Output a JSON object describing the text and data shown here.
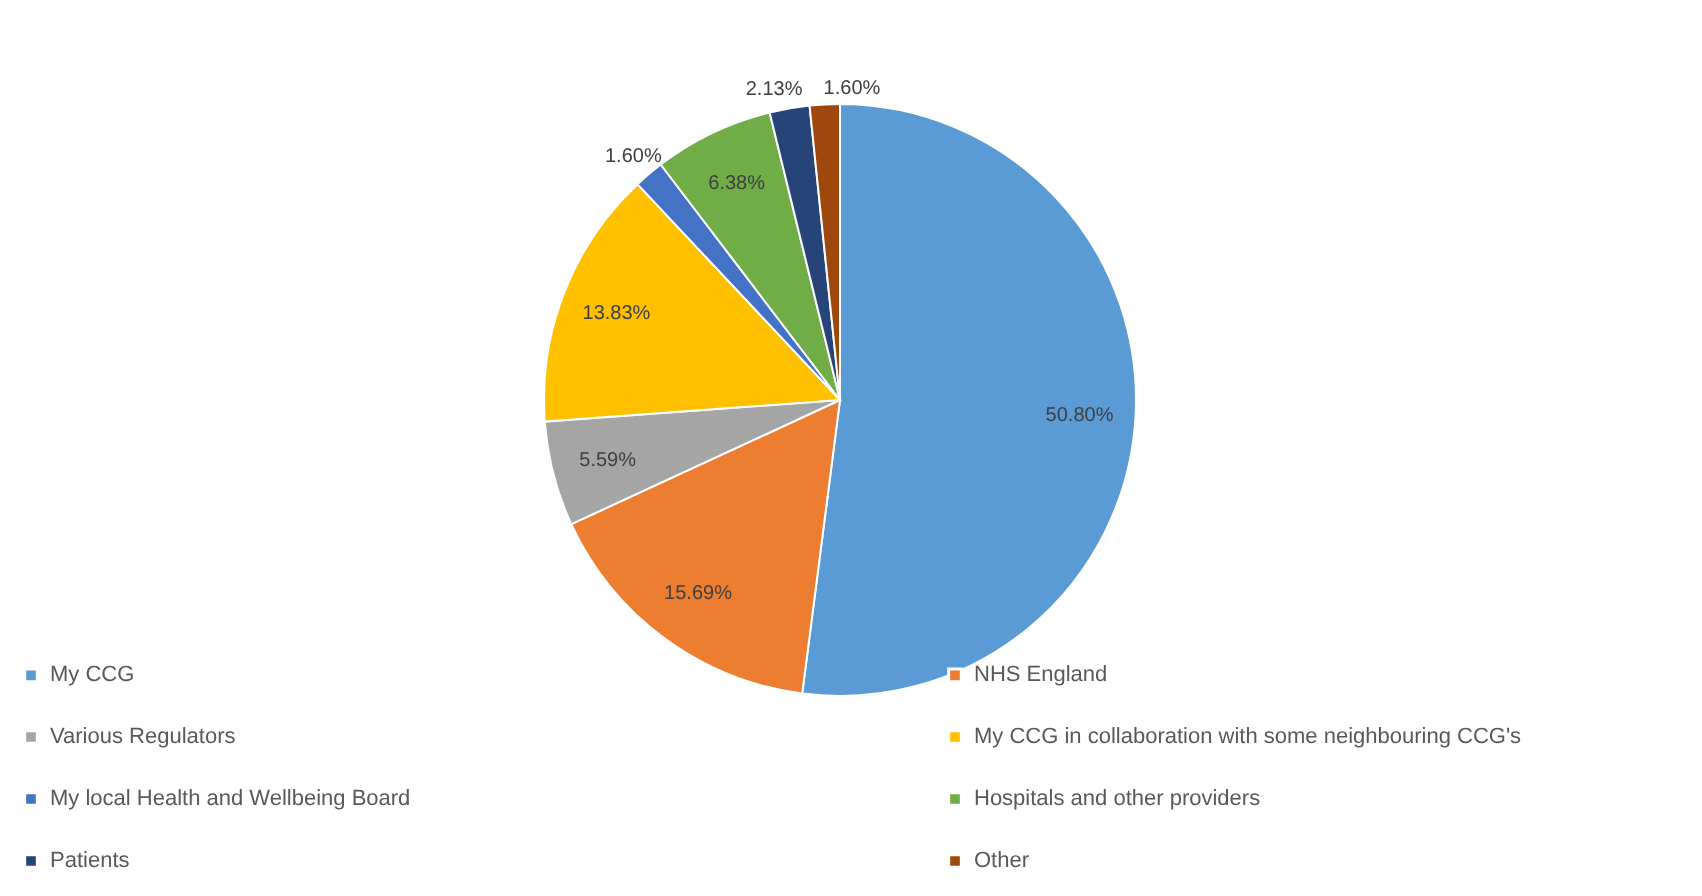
{
  "chart_data": {
    "type": "pie",
    "categories": [
      "My CCG",
      "NHS England",
      "Various Regulators",
      "My CCG in collaboration with some neighbouring CCG's",
      "My local Health and Wellbeing Board",
      "Hospitals and other providers",
      "Patients",
      "Other"
    ],
    "values": [
      50.8,
      15.69,
      5.59,
      13.83,
      1.6,
      6.38,
      2.13,
      1.6
    ],
    "value_labels": [
      "50.80%",
      "15.69%",
      "5.59%",
      "13.83%",
      "1.60%",
      "6.38%",
      "2.13%",
      "1.60%"
    ],
    "colors": [
      "#5b9bd5",
      "#ed7d31",
      "#a5a5a5",
      "#ffc000",
      "#4472c4",
      "#70ad47",
      "#264478",
      "#9e480e"
    ],
    "legend": "bottom"
  }
}
